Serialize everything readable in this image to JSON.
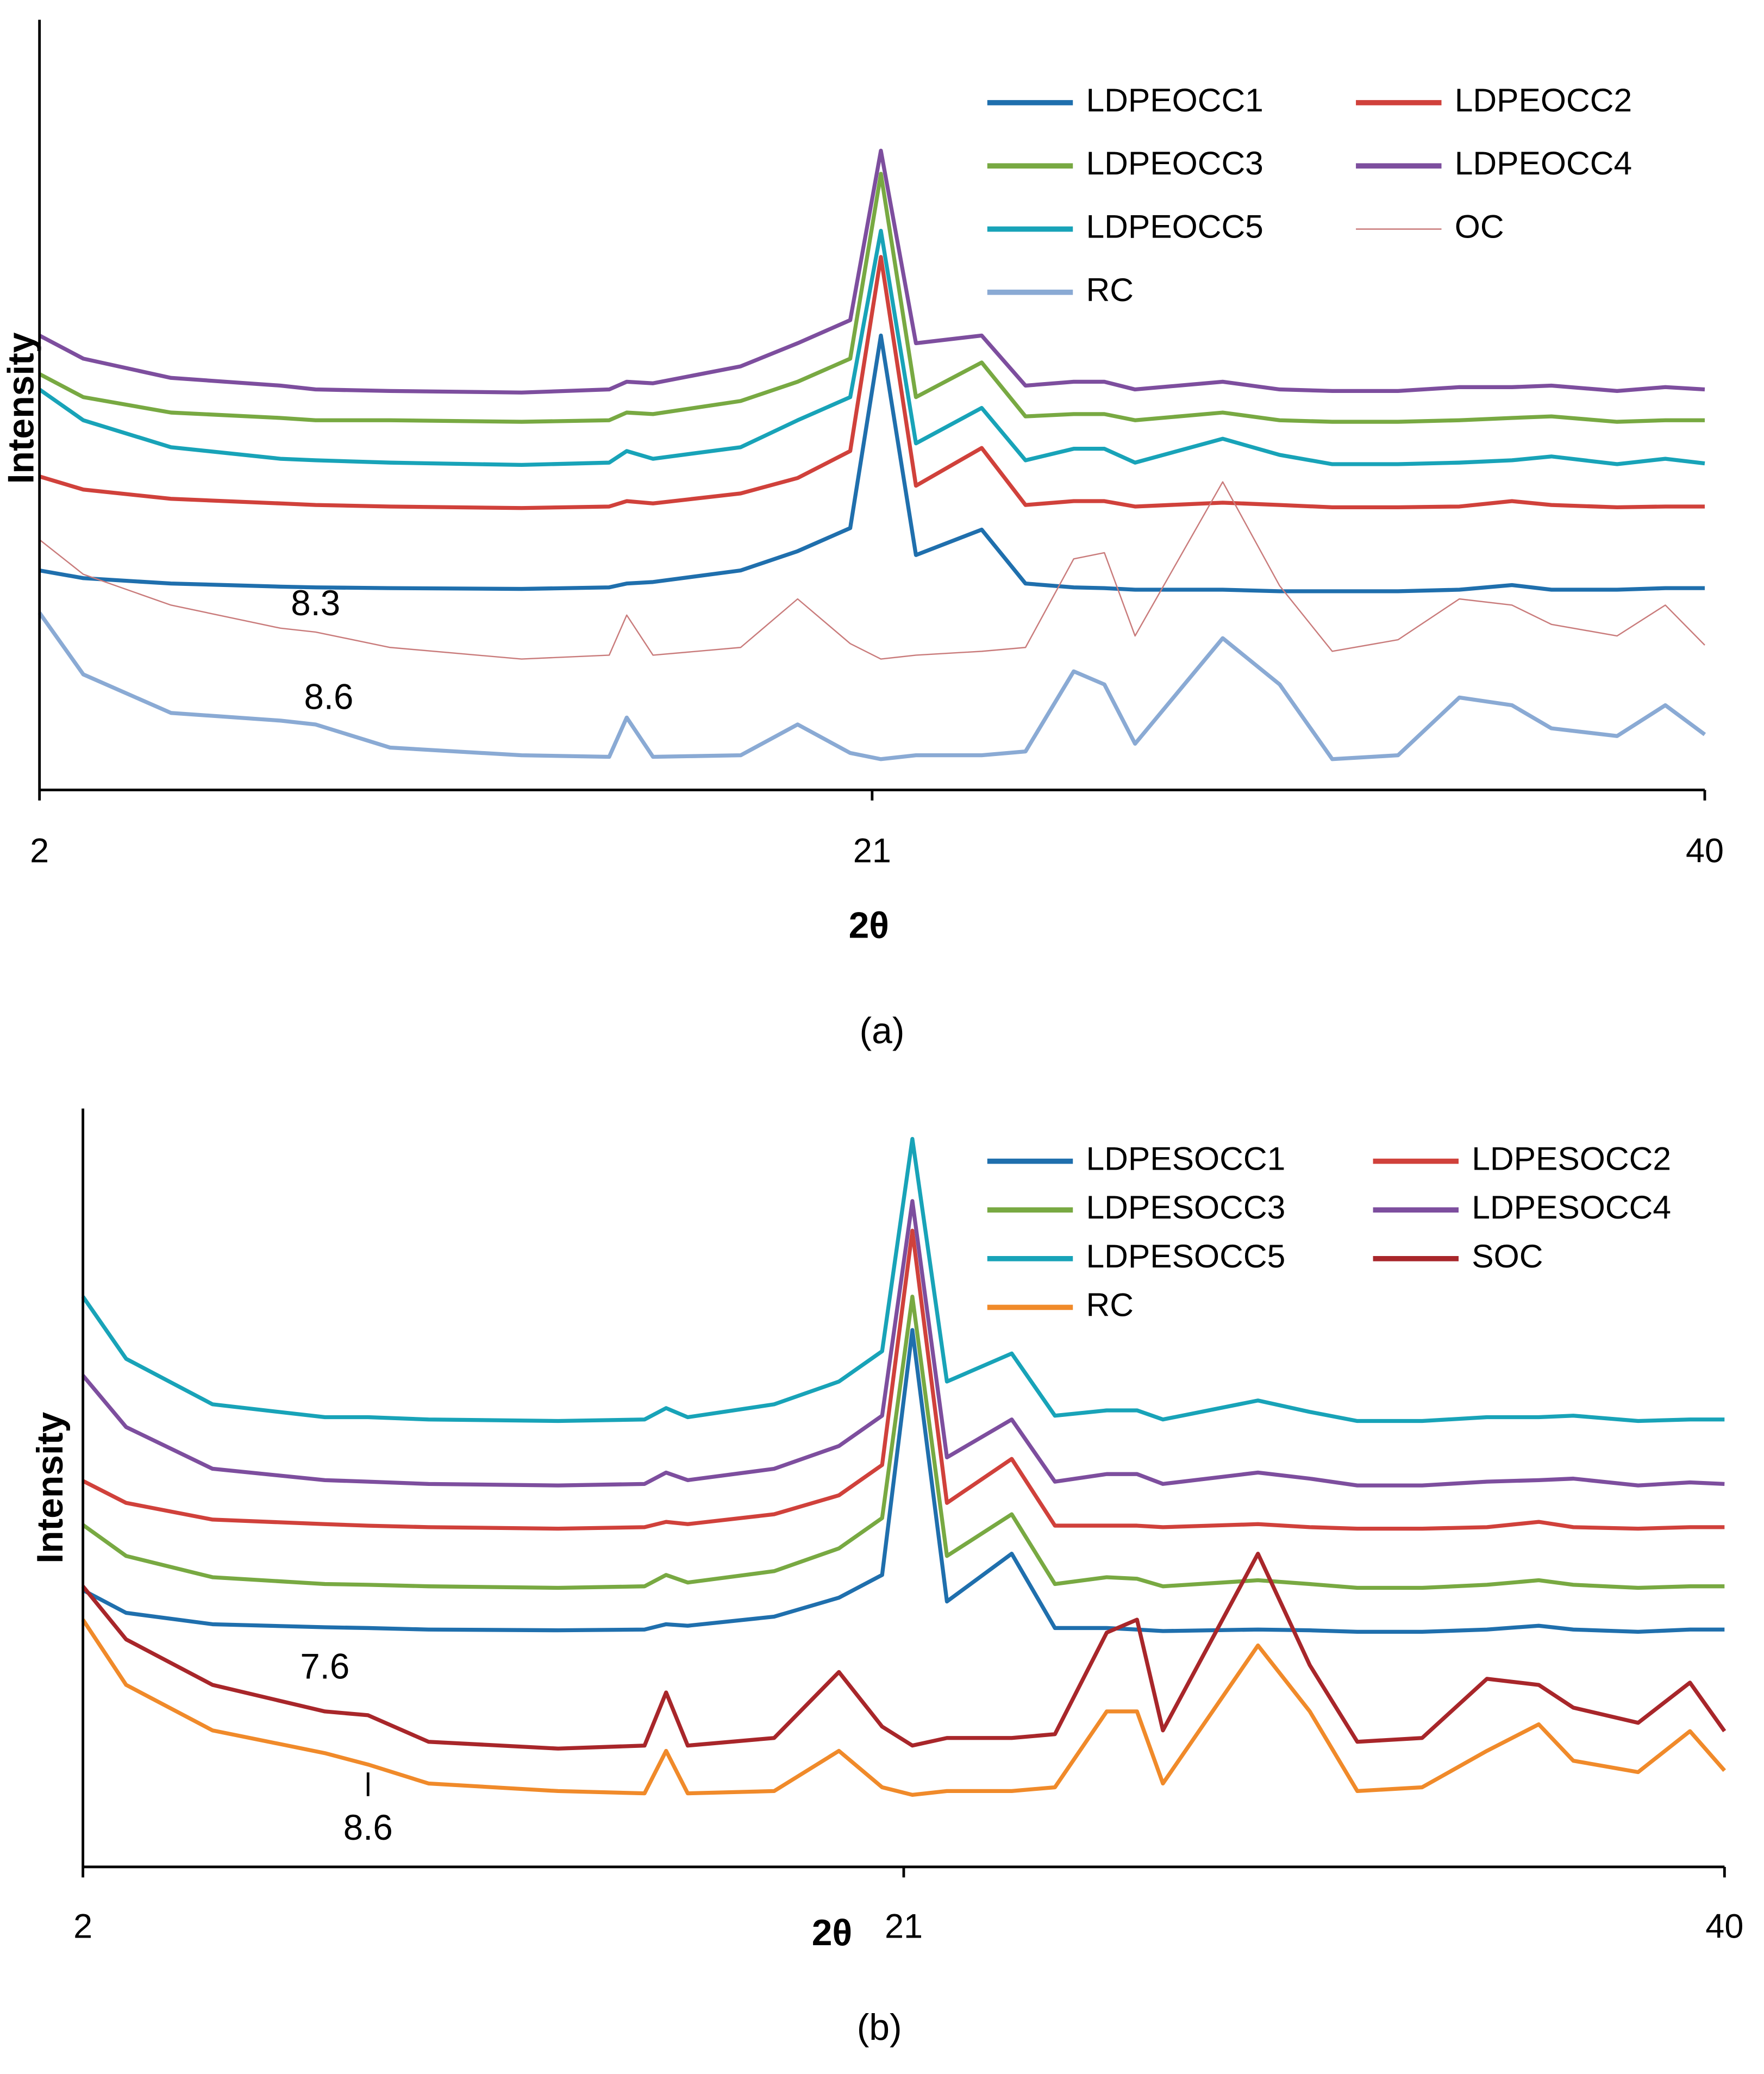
{
  "chart_data": [
    {
      "type": "line",
      "xlabel": "2θ",
      "ylabel": "Intensity",
      "caption": "(a)",
      "legend": "upper right",
      "xlim": [
        2,
        40
      ],
      "ylim": [
        0,
        100
      ],
      "xticks": [
        2,
        21,
        40
      ],
      "x": [
        2,
        3,
        5,
        7.5,
        8.3,
        10,
        13,
        15,
        15.4,
        16,
        18,
        19.3,
        20.5,
        21.2,
        22,
        23.5,
        24.5,
        25.6,
        26.3,
        27,
        29,
        30.3,
        31.5,
        33,
        34.4,
        35.6,
        36.5,
        38,
        39.1,
        40
      ],
      "series": [
        {
          "name": "LDPEOCC1",
          "color": "#1f6fad",
          "values": [
            28.5,
            27.5,
            26.8,
            26.4,
            26.3,
            26.2,
            26.1,
            26.3,
            26.8,
            27,
            28.5,
            31,
            34,
            59,
            30.5,
            33.8,
            26.8,
            26.3,
            26.2,
            26,
            26,
            25.8,
            25.8,
            25.8,
            26,
            26.6,
            26,
            26,
            26.2,
            26.2
          ]
        },
        {
          "name": "LDPEOCC2",
          "color": "#d0413b",
          "values": [
            40.7,
            39,
            37.8,
            37.2,
            37,
            36.8,
            36.6,
            36.8,
            37.5,
            37.2,
            38.5,
            40.5,
            44,
            69.2,
            39.5,
            44.4,
            37,
            37.5,
            37.5,
            36.8,
            37.3,
            37,
            36.7,
            36.7,
            36.8,
            37.5,
            37,
            36.7,
            36.8,
            36.8
          ]
        },
        {
          "name": "LDPEOCC3",
          "color": "#78a942",
          "values": [
            54,
            51,
            49,
            48.3,
            48,
            48,
            47.8,
            48,
            49,
            48.8,
            50.5,
            53,
            56,
            80,
            51,
            55.5,
            48.5,
            48.8,
            48.8,
            48,
            49,
            48,
            47.8,
            47.8,
            48,
            48.3,
            48.5,
            47.8,
            48,
            48
          ]
        },
        {
          "name": "LDPEOCC4",
          "color": "#7d4e9e",
          "values": [
            59,
            56,
            53.5,
            52.5,
            52,
            51.8,
            51.6,
            52,
            53,
            52.8,
            55,
            58,
            61,
            83,
            58,
            59,
            52.5,
            53,
            53,
            52,
            53,
            52,
            51.8,
            51.8,
            52.3,
            52.3,
            52.5,
            51.8,
            52.3,
            52
          ]
        },
        {
          "name": "LDPEOCC5",
          "color": "#18a3b8",
          "values": [
            52,
            48,
            44.5,
            43,
            42.8,
            42.5,
            42.2,
            42.5,
            44,
            43,
            44.5,
            48,
            51,
            72.6,
            45,
            49.6,
            42.8,
            44.3,
            44.3,
            42.5,
            45.6,
            43.5,
            42.3,
            42.3,
            42.5,
            42.8,
            43.3,
            42.3,
            43,
            42.4
          ]
        },
        {
          "name": "OC",
          "color": "#c97b7b",
          "values": [
            32.5,
            28,
            24,
            21,
            20.5,
            18.5,
            17,
            17.5,
            22.7,
            17.5,
            18.5,
            24.8,
            19,
            17,
            17.5,
            18,
            18.5,
            30,
            30.8,
            20,
            40,
            26.5,
            18,
            19.5,
            24.8,
            24,
            21.5,
            20,
            24,
            18.8
          ]
        },
        {
          "name": "RC",
          "color": "#8aaad4",
          "values": [
            23,
            15,
            10,
            9,
            8.5,
            5.5,
            4.5,
            4.3,
            9.4,
            4.3,
            4.5,
            8.5,
            4.8,
            4,
            4.5,
            4.5,
            5,
            15.4,
            13.7,
            6,
            19.7,
            13.7,
            4,
            4.5,
            12,
            11,
            8,
            7,
            11,
            7.2
          ]
        }
      ],
      "annotations": [
        {
          "text": "8.3",
          "x": 8.3
        },
        {
          "text": "8.6",
          "x": 8.6
        }
      ]
    },
    {
      "type": "line",
      "xlabel": "2θ",
      "ylabel": "Intensity",
      "caption": "(b)",
      "legend": "upper right",
      "xlim": [
        2,
        40
      ],
      "ylim": [
        0,
        100
      ],
      "xticks": [
        2,
        21,
        40
      ],
      "x": [
        2,
        3,
        5,
        7.6,
        8.6,
        10,
        13,
        15,
        15.5,
        16,
        18,
        19.5,
        20.5,
        21.2,
        22,
        23.5,
        24.5,
        25.7,
        26.4,
        27,
        29.2,
        30.4,
        31.5,
        33,
        34.5,
        35.7,
        36.5,
        38,
        39.2,
        40
      ],
      "series": [
        {
          "name": "LDPESOCC1",
          "color": "#1f6fad",
          "values": [
            36.5,
            33.5,
            32,
            31.6,
            31.5,
            31.3,
            31.2,
            31.3,
            32,
            31.8,
            33,
            35.5,
            38.5,
            70.8,
            35,
            41.3,
            31.5,
            31.5,
            31.3,
            31.1,
            31.3,
            31.2,
            31,
            31,
            31.3,
            31.8,
            31.3,
            31,
            31.3,
            31.3
          ]
        },
        {
          "name": "LDPESOCC2",
          "color": "#d0413b",
          "values": [
            50.9,
            48,
            45.8,
            45.2,
            45,
            44.8,
            44.6,
            44.8,
            45.5,
            45.2,
            46.5,
            49,
            53,
            83.9,
            48,
            53.8,
            45,
            45,
            45,
            44.8,
            45.2,
            44.8,
            44.6,
            44.6,
            44.8,
            45.5,
            44.8,
            44.6,
            44.8,
            44.8
          ]
        },
        {
          "name": "LDPESOCC3",
          "color": "#78a942",
          "values": [
            45.1,
            41,
            38.2,
            37.3,
            37.2,
            37,
            36.8,
            37,
            38.5,
            37.5,
            39,
            42,
            46,
            75.2,
            41,
            46.5,
            37.3,
            38.2,
            38,
            37,
            37.8,
            37.3,
            36.8,
            36.8,
            37.2,
            37.8,
            37.2,
            36.8,
            37,
            37
          ]
        },
        {
          "name": "LDPESOCC4",
          "color": "#7d4e9e",
          "values": [
            64.8,
            58,
            52.5,
            51,
            50.8,
            50.5,
            50.3,
            50.5,
            52,
            51,
            52.5,
            55.5,
            59.5,
            87.8,
            54,
            59,
            50.8,
            51.8,
            51.8,
            50.5,
            52,
            51.2,
            50.3,
            50.3,
            50.8,
            51,
            51.2,
            50.3,
            50.7,
            50.5
          ]
        },
        {
          "name": "LDPESOCC5",
          "color": "#18a3b8",
          "values": [
            75.2,
            67,
            61,
            59.3,
            59.3,
            59,
            58.8,
            59,
            60.5,
            59.3,
            61,
            64,
            68,
            96,
            64,
            67.7,
            59.5,
            60.2,
            60.2,
            59,
            61.5,
            60,
            58.8,
            58.8,
            59.3,
            59.3,
            59.5,
            58.8,
            59,
            59
          ]
        },
        {
          "name": "SOC",
          "color": "#a8262a",
          "values": [
            37,
            30,
            24,
            20.5,
            20,
            16.5,
            15.6,
            16,
            23,
            16,
            17,
            25.7,
            18.5,
            16,
            17,
            17,
            17.5,
            30.9,
            32.6,
            18,
            41.3,
            26.6,
            16.5,
            17,
            24.8,
            24,
            21,
            19,
            24.3,
            17.9
          ]
        },
        {
          "name": "RC",
          "color": "#f08a2a",
          "values": [
            32.6,
            24,
            18,
            15,
            13.5,
            11,
            10,
            9.7,
            15.3,
            9.7,
            10,
            15.3,
            10.5,
            9.5,
            10,
            10,
            10.5,
            20.5,
            20.5,
            11,
            29.2,
            20.5,
            10,
            10.5,
            15.3,
            18.8,
            14,
            12.5,
            17.9,
            12.7
          ]
        }
      ],
      "annotations": [
        {
          "text": "7.6",
          "x": 7.6
        },
        {
          "text": "8.6",
          "x": 8.6
        }
      ]
    }
  ]
}
